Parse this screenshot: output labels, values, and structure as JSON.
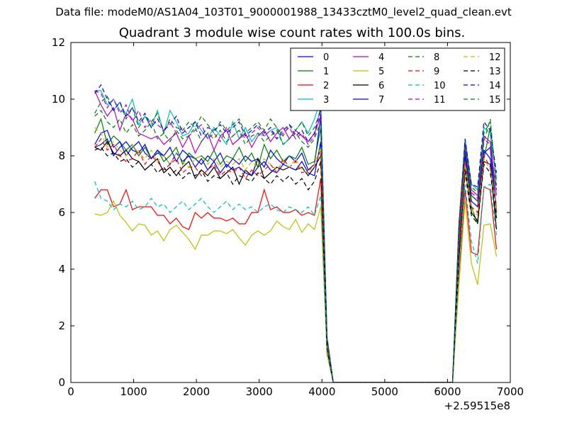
{
  "suptitle": "Data file: modeM0/AS1A04_103T01_9000001988_13433cztM0_level2_quad_clean.evt",
  "chart_data": {
    "type": "line",
    "title": "Quadrant 3 module wise count rates with 100.0s bins.",
    "xlabel": "",
    "ylabel": "",
    "x_offset_label": "+2.59515e8",
    "xlim": [
      0,
      7000
    ],
    "ylim": [
      0,
      12
    ],
    "xticks": [
      0,
      1000,
      2000,
      3000,
      4000,
      5000,
      6000,
      7000
    ],
    "yticks": [
      0,
      2,
      4,
      6,
      8,
      10,
      12
    ],
    "grid": false,
    "legend_position": "top-right",
    "legend_columns": 4,
    "x": [
      380,
      480,
      580,
      680,
      780,
      880,
      980,
      1080,
      1180,
      1280,
      1380,
      1480,
      1580,
      1680,
      1780,
      1880,
      1980,
      2080,
      2180,
      2280,
      2380,
      2480,
      2580,
      2680,
      2780,
      2880,
      2980,
      3080,
      3180,
      3280,
      3380,
      3480,
      3580,
      3680,
      3780,
      3880,
      3980,
      4080,
      4180,
      4280,
      4380,
      4480,
      4580,
      4680,
      4780,
      4880,
      4980,
      5080,
      5180,
      5280,
      5380,
      5480,
      5580,
      5680,
      5780,
      5880,
      5980,
      6080,
      6180,
      6280,
      6380,
      6480,
      6580,
      6680,
      6780
    ],
    "series": [
      {
        "name": "0",
        "color": "#0000ff",
        "dash": "solid",
        "values": [
          8.3,
          8.4,
          8.6,
          8.0,
          8.3,
          8.5,
          8.2,
          8.1,
          8.4,
          7.9,
          8.1,
          8.0,
          8.3,
          7.8,
          8.2,
          8.0,
          7.9,
          7.7,
          8.0,
          7.8,
          8.1,
          7.6,
          7.9,
          7.7,
          8.0,
          7.8,
          7.9,
          7.6,
          8.2,
          7.9,
          7.7,
          8.0,
          7.8,
          8.1,
          7.5,
          7.7,
          9.4,
          1.4,
          0,
          0,
          0,
          0,
          0,
          0,
          0,
          0,
          0,
          0,
          0,
          0,
          0,
          0,
          0,
          0,
          0,
          0,
          0,
          0,
          4.4,
          8.2,
          6.4,
          6.2,
          8.1,
          8.3,
          6.0
        ]
      },
      {
        "name": "1",
        "color": "#008000",
        "dash": "solid",
        "values": [
          8.8,
          9.3,
          8.4,
          8.7,
          8.5,
          8.2,
          8.4,
          8.0,
          8.3,
          7.9,
          8.2,
          7.8,
          8.0,
          8.3,
          7.7,
          8.1,
          7.9,
          8.0,
          7.8,
          8.2,
          7.7,
          8.0,
          7.9,
          8.3,
          7.8,
          8.1,
          7.6,
          8.4,
          7.9,
          8.2,
          7.8,
          8.0,
          7.9,
          8.3,
          7.7,
          7.8,
          9.0,
          1.2,
          0,
          0,
          0,
          0,
          0,
          0,
          0,
          0,
          0,
          0,
          0,
          0,
          0,
          0,
          0,
          0,
          0,
          0,
          0,
          0,
          4.2,
          8.0,
          6.2,
          5.6,
          7.9,
          9.0,
          5.8
        ]
      },
      {
        "name": "2",
        "color": "#ff0000",
        "dash": "solid",
        "values": [
          6.5,
          6.8,
          6.8,
          6.2,
          6.3,
          6.8,
          6.1,
          6.2,
          6.2,
          6.2,
          5.9,
          5.9,
          5.6,
          5.8,
          5.5,
          5.4,
          6.0,
          5.8,
          6.0,
          5.8,
          5.8,
          5.7,
          5.8,
          5.6,
          5.6,
          6.0,
          6.0,
          6.8,
          6.1,
          6.2,
          6.0,
          6.0,
          6.1,
          5.9,
          6.0,
          5.9,
          7.2,
          1.0,
          0,
          0,
          0,
          0,
          0,
          0,
          0,
          0,
          0,
          0,
          0,
          0,
          0,
          0,
          0,
          0,
          0,
          0,
          0,
          0,
          3.6,
          6.8,
          4.6,
          4.5,
          6.9,
          6.8,
          4.7
        ]
      },
      {
        "name": "3",
        "color": "#00bfbf",
        "dash": "solid",
        "values": [
          10.3,
          10.3,
          9.8,
          10.0,
          9.6,
          9.5,
          10.0,
          9.1,
          9.4,
          9.0,
          9.6,
          8.8,
          9.6,
          9.2,
          8.7,
          8.8,
          9.2,
          8.9,
          8.6,
          9.0,
          8.7,
          8.4,
          9.2,
          8.6,
          9.0,
          8.5,
          8.8,
          8.7,
          8.9,
          9.0,
          8.4,
          8.6,
          8.9,
          9.2,
          8.8,
          9.3,
          10.0,
          1.6,
          0,
          0,
          0,
          0,
          0,
          0,
          0,
          0,
          0,
          0,
          0,
          0,
          0,
          0,
          0,
          0,
          0,
          0,
          0,
          0,
          5.4,
          8.6,
          7.0,
          6.8,
          9.0,
          8.8,
          7.2
        ]
      },
      {
        "name": "4",
        "color": "#bf00bf",
        "dash": "solid",
        "values": [
          10.3,
          9.8,
          9.4,
          9.7,
          8.9,
          9.5,
          9.3,
          8.8,
          8.7,
          8.6,
          8.7,
          8.4,
          8.6,
          8.8,
          8.3,
          8.7,
          8.1,
          8.5,
          8.8,
          8.2,
          8.7,
          8.9,
          8.4,
          8.6,
          8.8,
          8.3,
          8.7,
          8.9,
          8.5,
          8.8,
          9.0,
          8.6,
          8.9,
          8.7,
          8.5,
          8.8,
          9.4,
          1.5,
          0,
          0,
          0,
          0,
          0,
          0,
          0,
          0,
          0,
          0,
          0,
          0,
          0,
          0,
          0,
          0,
          0,
          0,
          0,
          0,
          5.0,
          8.4,
          6.8,
          6.6,
          8.7,
          8.5,
          6.6
        ]
      },
      {
        "name": "5",
        "color": "#bfbf00",
        "dash": "solid",
        "values": [
          5.95,
          5.9,
          6.0,
          6.4,
          5.9,
          5.65,
          5.35,
          5.6,
          5.55,
          5.2,
          5.35,
          5.0,
          5.4,
          5.55,
          5.3,
          5.05,
          4.7,
          5.2,
          5.2,
          5.35,
          5.35,
          5.25,
          5.4,
          5.1,
          4.85,
          5.2,
          5.35,
          5.2,
          5.35,
          5.7,
          5.5,
          5.4,
          5.75,
          5.3,
          5.6,
          5.4,
          6.2,
          1.0,
          0,
          0,
          0,
          0,
          0,
          0,
          0,
          0,
          0,
          0,
          0,
          0,
          0,
          0,
          0,
          0,
          0,
          0,
          0,
          0,
          3.4,
          6.4,
          4.2,
          3.45,
          5.55,
          5.6,
          4.45
        ]
      },
      {
        "name": "6",
        "color": "#000000",
        "dash": "solid",
        "values": [
          8.3,
          8.2,
          8.5,
          8.1,
          8.0,
          8.2,
          7.9,
          7.8,
          7.5,
          7.7,
          7.9,
          7.4,
          7.6,
          7.3,
          7.6,
          7.8,
          7.2,
          7.5,
          7.3,
          7.6,
          7.2,
          7.4,
          7.6,
          7.0,
          7.5,
          7.3,
          7.9,
          7.2,
          7.4,
          7.6,
          7.5,
          7.6,
          7.5,
          7.6,
          7.3,
          7.6,
          8.0,
          1.3,
          0,
          0,
          0,
          0,
          0,
          0,
          0,
          0,
          0,
          0,
          0,
          0,
          0,
          0,
          0,
          0,
          0,
          0,
          0,
          0,
          4.3,
          7.6,
          6.0,
          5.7,
          7.8,
          7.7,
          5.4
        ]
      },
      {
        "name": "7",
        "color": "#0000ff",
        "dash": "solid",
        "values": [
          8.4,
          8.8,
          8.9,
          8.3,
          8.5,
          8.0,
          8.3,
          8.5,
          8.1,
          7.9,
          8.2,
          8.0,
          7.7,
          8.1,
          7.8,
          8.0,
          7.6,
          7.9,
          7.5,
          7.8,
          7.4,
          7.7,
          7.5,
          7.6,
          7.4,
          7.3,
          7.6,
          7.8,
          7.5,
          7.4,
          7.7,
          7.6,
          7.5,
          7.8,
          7.4,
          7.3,
          8.5,
          1.3,
          0,
          0,
          0,
          0,
          0,
          0,
          0,
          0,
          0,
          0,
          0,
          0,
          0,
          0,
          0,
          0,
          0,
          0,
          0,
          0,
          4.6,
          8.0,
          6.6,
          6.4,
          8.2,
          7.9,
          6.2
        ]
      },
      {
        "name": "8",
        "color": "#008000",
        "dash": "dashed",
        "values": [
          9.5,
          9.9,
          10.1,
          9.6,
          9.9,
          9.3,
          9.7,
          9.0,
          9.4,
          9.2,
          9.5,
          8.8,
          9.3,
          9.0,
          8.9,
          9.2,
          9.0,
          9.4,
          9.1,
          8.8,
          9.2,
          8.9,
          9.1,
          9.3,
          8.8,
          9.0,
          9.2,
          8.9,
          9.3,
          9.0,
          8.7,
          9.1,
          8.9,
          9.2,
          8.7,
          9.0,
          9.6,
          1.6,
          0,
          0,
          0,
          0,
          0,
          0,
          0,
          0,
          0,
          0,
          0,
          0,
          0,
          0,
          0,
          0,
          0,
          0,
          0,
          0,
          5.6,
          8.5,
          6.9,
          6.7,
          8.8,
          9.2,
          7.0
        ]
      },
      {
        "name": "9",
        "color": "#ff0000",
        "dash": "dashed",
        "values": [
          8.3,
          8.6,
          8.2,
          8.4,
          8.0,
          7.8,
          7.9,
          8.2,
          7.7,
          8.0,
          7.8,
          7.5,
          7.7,
          7.9,
          7.4,
          7.6,
          7.6,
          7.3,
          7.5,
          7.7,
          7.3,
          7.5,
          7.4,
          7.6,
          7.2,
          7.5,
          7.3,
          7.5,
          7.7,
          7.4,
          7.9,
          7.6,
          7.8,
          7.4,
          7.5,
          7.6,
          8.2,
          1.3,
          0,
          0,
          0,
          0,
          0,
          0,
          0,
          0,
          0,
          0,
          0,
          0,
          0,
          0,
          0,
          0,
          0,
          0,
          0,
          0,
          4.8,
          7.8,
          6.2,
          6.0,
          8.0,
          7.6,
          6.0
        ]
      },
      {
        "name": "10",
        "color": "#00bfbf",
        "dash": "dashed",
        "values": [
          7.1,
          6.5,
          6.4,
          6.1,
          6.3,
          6.2,
          6.4,
          6.1,
          6.2,
          6.5,
          6.2,
          6.3,
          6.0,
          6.2,
          6.4,
          6.1,
          6.3,
          6.5,
          6.2,
          6.0,
          6.2,
          6.4,
          6.1,
          6.3,
          6.1,
          6.2,
          6.0,
          6.2,
          6.3,
          6.1,
          6.0,
          6.2,
          6.1,
          6.0,
          6.2,
          5.9,
          6.6,
          1.1,
          0,
          0,
          0,
          0,
          0,
          0,
          0,
          0,
          0,
          0,
          0,
          0,
          0,
          0,
          0,
          0,
          0,
          0,
          0,
          0,
          4.0,
          7.0,
          5.0,
          4.2,
          6.9,
          7.0,
          5.2
        ]
      },
      {
        "name": "11",
        "color": "#bf00bf",
        "dash": "dashed",
        "values": [
          10.3,
          10.2,
          9.7,
          10.0,
          9.5,
          9.8,
          9.2,
          9.6,
          9.0,
          9.3,
          9.1,
          8.9,
          9.2,
          8.8,
          9.0,
          8.7,
          8.9,
          9.1,
          8.6,
          8.8,
          8.5,
          9.0,
          8.7,
          8.9,
          8.6,
          8.8,
          9.0,
          8.7,
          8.9,
          8.6,
          8.8,
          9.0,
          8.6,
          8.8,
          8.4,
          8.7,
          9.5,
          1.5,
          0,
          0,
          0,
          0,
          0,
          0,
          0,
          0,
          0,
          0,
          0,
          0,
          0,
          0,
          0,
          0,
          0,
          0,
          0,
          0,
          5.2,
          8.3,
          6.7,
          6.5,
          8.6,
          8.4,
          6.8
        ]
      },
      {
        "name": "12",
        "color": "#bfbf00",
        "dash": "dashed",
        "values": [
          9.0,
          8.8,
          8.3,
          8.5,
          8.2,
          8.0,
          8.4,
          8.1,
          7.9,
          8.2,
          7.8,
          8.0,
          7.7,
          8.1,
          7.8,
          7.6,
          7.9,
          8.0,
          7.7,
          7.9,
          7.6,
          7.8,
          7.7,
          7.9,
          7.5,
          7.8,
          7.6,
          7.9,
          7.7,
          7.5,
          7.8,
          7.6,
          7.9,
          7.5,
          7.4,
          7.7,
          8.3,
          1.3,
          0,
          0,
          0,
          0,
          0,
          0,
          0,
          0,
          0,
          0,
          0,
          0,
          0,
          0,
          0,
          0,
          0,
          0,
          0,
          0,
          4.5,
          7.7,
          6.1,
          5.9,
          7.9,
          7.5,
          6.2
        ]
      },
      {
        "name": "13",
        "color": "#000000",
        "dash": "dashed",
        "values": [
          8.2,
          8.3,
          8.0,
          8.1,
          7.8,
          7.9,
          7.6,
          7.8,
          7.5,
          7.7,
          7.4,
          7.6,
          7.3,
          7.5,
          7.2,
          7.4,
          7.3,
          7.5,
          7.1,
          7.3,
          7.2,
          7.4,
          7.0,
          7.3,
          7.2,
          7.1,
          7.4,
          7.2,
          7.0,
          7.3,
          7.1,
          7.3,
          7.0,
          7.2,
          6.8,
          7.1,
          7.8,
          1.2,
          0,
          0,
          0,
          0,
          0,
          0,
          0,
          0,
          0,
          0,
          0,
          0,
          0,
          0,
          0,
          0,
          0,
          0,
          0,
          0,
          4.4,
          7.4,
          5.9,
          5.6,
          7.7,
          7.4,
          5.8
        ]
      },
      {
        "name": "14",
        "color": "#0000ff",
        "dash": "dashed",
        "values": [
          10.2,
          10.5,
          10.0,
          9.6,
          9.9,
          9.4,
          9.7,
          9.2,
          9.5,
          9.0,
          9.3,
          8.9,
          9.1,
          9.4,
          8.8,
          9.0,
          9.2,
          8.7,
          9.0,
          8.9,
          9.1,
          8.8,
          9.0,
          9.2,
          8.7,
          8.9,
          9.1,
          8.8,
          9.0,
          8.6,
          8.9,
          9.1,
          8.7,
          8.9,
          8.5,
          8.8,
          9.7,
          1.6,
          0,
          0,
          0,
          0,
          0,
          0,
          0,
          0,
          0,
          0,
          0,
          0,
          0,
          0,
          0,
          0,
          0,
          0,
          0,
          0,
          5.5,
          8.6,
          7.0,
          6.9,
          9.2,
          8.9,
          7.4
        ]
      },
      {
        "name": "15",
        "color": "#008000",
        "dash": "dashed",
        "values": [
          9.4,
          9.6,
          9.2,
          9.0,
          9.3,
          8.8,
          9.1,
          8.7,
          8.9,
          9.2,
          8.6,
          8.8,
          8.5,
          8.9,
          8.6,
          8.7,
          9.0,
          8.5,
          8.8,
          8.6,
          8.9,
          8.5,
          8.7,
          8.9,
          8.4,
          8.7,
          8.8,
          8.5,
          8.7,
          8.9,
          8.4,
          8.6,
          8.8,
          8.5,
          8.3,
          8.6,
          9.2,
          1.5,
          0,
          0,
          0,
          0,
          0,
          0,
          0,
          0,
          0,
          0,
          0,
          0,
          0,
          0,
          0,
          0,
          0,
          0,
          0,
          0,
          5.3,
          8.3,
          6.6,
          6.4,
          8.5,
          9.3,
          6.9
        ]
      }
    ]
  }
}
